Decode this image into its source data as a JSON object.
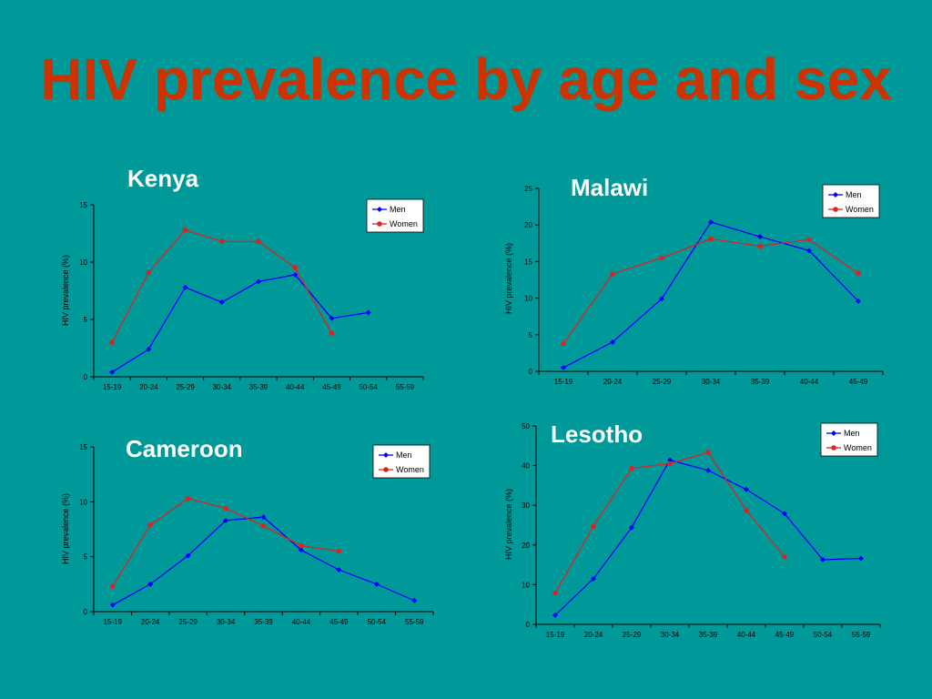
{
  "slide": {
    "title": "HIV prevalence by age and sex"
  },
  "colors": {
    "background": "#009999",
    "title": "#CC3300",
    "men": "#0000FF",
    "women": "#DD2222"
  },
  "chart_data": [
    {
      "id": "kenya",
      "type": "line",
      "title": "Kenya",
      "ylabel": "HIV prevalence (%)",
      "xlabel": "",
      "categories": [
        "15-19",
        "20-24",
        "25-29",
        "30-34",
        "35-39",
        "40-44",
        "45-49",
        "50-54",
        "55-59"
      ],
      "ylim": [
        0,
        15
      ],
      "yticks": [
        0,
        5,
        10,
        15
      ],
      "legend": "top-right",
      "series": [
        {
          "name": "Men",
          "color": "#0000FF",
          "values": [
            0.4,
            2.4,
            7.8,
            6.5,
            8.3,
            8.9,
            5.1,
            5.6,
            null
          ]
        },
        {
          "name": "Women",
          "color": "#DD2222",
          "values": [
            3.0,
            9.1,
            12.8,
            11.8,
            11.8,
            9.5,
            3.8,
            null,
            null
          ]
        }
      ]
    },
    {
      "id": "malawi",
      "type": "line",
      "title": "Malawi",
      "ylabel": "HIV prevalence (%)",
      "xlabel": "",
      "categories": [
        "15-19",
        "20-24",
        "25-29",
        "30-34",
        "35-39",
        "40-44",
        "45-49"
      ],
      "ylim": [
        0,
        25
      ],
      "yticks": [
        0,
        5,
        10,
        15,
        20,
        25
      ],
      "legend": "top-right",
      "series": [
        {
          "name": "Men",
          "color": "#0000FF",
          "values": [
            0.5,
            4.0,
            9.9,
            20.4,
            18.4,
            16.5,
            9.6
          ]
        },
        {
          "name": "Women",
          "color": "#DD2222",
          "values": [
            3.8,
            13.3,
            15.5,
            18.1,
            17.1,
            18.0,
            13.4
          ]
        }
      ]
    },
    {
      "id": "cameroon",
      "type": "line",
      "title": "Cameroon",
      "ylabel": "HIV prevalence (%)",
      "xlabel": "",
      "categories": [
        "15-19",
        "20-24",
        "25-29",
        "30-34",
        "35-39",
        "40-44",
        "45-49",
        "50-54",
        "55-59"
      ],
      "ylim": [
        0,
        15
      ],
      "yticks": [
        0,
        5,
        10,
        15
      ],
      "legend": "top-right",
      "series": [
        {
          "name": "Men",
          "color": "#0000FF",
          "values": [
            0.6,
            2.5,
            5.1,
            8.3,
            8.6,
            5.6,
            3.8,
            2.5,
            1.0
          ]
        },
        {
          "name": "Women",
          "color": "#DD2222",
          "values": [
            2.3,
            7.9,
            10.3,
            9.4,
            7.8,
            6.0,
            5.5,
            null,
            null
          ]
        }
      ]
    },
    {
      "id": "lesotho",
      "type": "line",
      "title": "Lesotho",
      "ylabel": "HIV prevalence (%)",
      "xlabel": "",
      "categories": [
        "15-19",
        "20-24",
        "25-29",
        "30-34",
        "35-39",
        "40-44",
        "45-49",
        "50-54",
        "55-59"
      ],
      "ylim": [
        0,
        50
      ],
      "yticks": [
        0,
        10,
        20,
        30,
        40,
        50
      ],
      "legend": "top-right",
      "series": [
        {
          "name": "Men",
          "color": "#0000FF",
          "values": [
            2.3,
            11.5,
            24.4,
            41.4,
            38.8,
            34.0,
            27.9,
            16.3,
            16.6
          ]
        },
        {
          "name": "Women",
          "color": "#DD2222",
          "values": [
            7.9,
            24.7,
            39.3,
            40.5,
            43.4,
            28.7,
            17.0,
            null,
            null
          ]
        }
      ]
    }
  ]
}
